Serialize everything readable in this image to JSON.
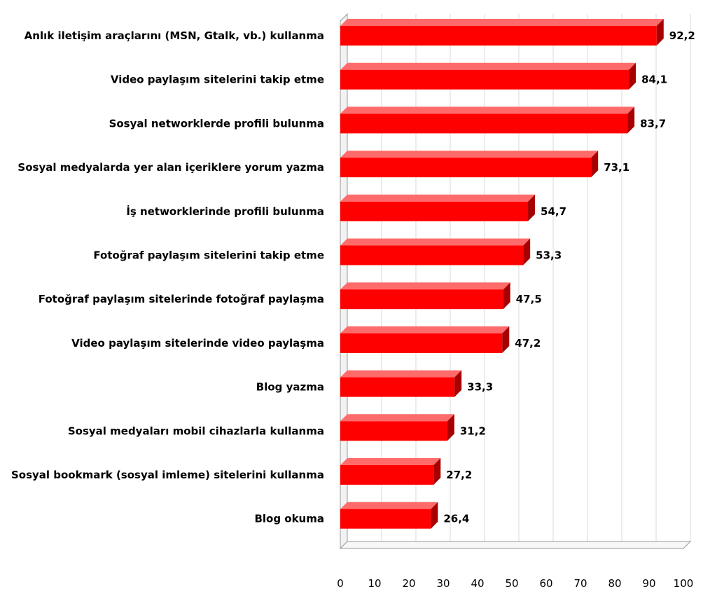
{
  "chart_data": {
    "type": "bar",
    "orientation": "horizontal",
    "categories": [
      "Anlık iletişim  araçlarını (MSN, Gtalk, vb.)  kullanma",
      "Video paylaşım sitelerini takip etme",
      "Sosyal networklerde profili bulunma",
      "Sosyal medyalarda yer alan içeriklere yorum yazma",
      "İş networklerinde profili bulunma",
      "Fotoğraf paylaşım sitelerini takip etme",
      "Fotoğraf paylaşım sitelerinde fotoğraf paylaşma",
      "Video paylaşım sitelerinde video paylaşma",
      "Blog yazma",
      "Sosyal medyaları mobil cihazlarla kullanma",
      "Sosyal bookmark (sosyal imleme) sitelerini kullanma",
      "Blog okuma"
    ],
    "values": [
      92.2,
      84.1,
      83.7,
      73.1,
      54.7,
      53.3,
      47.5,
      47.2,
      33.3,
      31.2,
      27.2,
      26.4
    ],
    "value_labels": [
      "92,2",
      "84,1",
      "83,7",
      "73,1",
      "54,7",
      "53,3",
      "47,5",
      "47,2",
      "33,3",
      "31,2",
      "27,2",
      "26,4"
    ],
    "xlim": [
      0,
      100
    ],
    "x_ticks": [
      0,
      10,
      20,
      30,
      40,
      50,
      60,
      70,
      80,
      90,
      100
    ],
    "grid": true,
    "legend": "none",
    "title": "",
    "xlabel": "",
    "ylabel": "",
    "colors": {
      "bar": "#ff0000",
      "bar_dark": "#a80000",
      "bar_top": "#ff6b6b",
      "grid": "#d9d9d9",
      "axis": "#9a9a9a"
    }
  }
}
